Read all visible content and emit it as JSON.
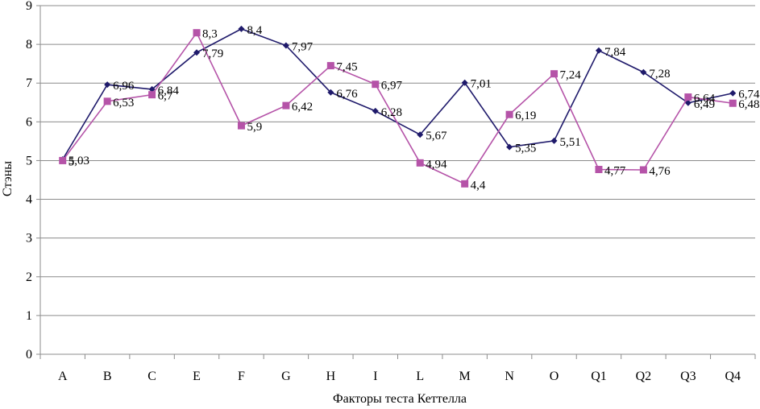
{
  "chart_data": {
    "type": "line",
    "xlabel": "Факторы теста Кеттелла",
    "ylabel": "Стэны",
    "ylim": [
      0,
      9
    ],
    "y_ticks": [
      "0",
      "1",
      "2",
      "3",
      "4",
      "5",
      "6",
      "7",
      "8",
      "9"
    ],
    "grid": "horizontal",
    "legend": "none",
    "categories": [
      "A",
      "B",
      "C",
      "E",
      "F",
      "G",
      "H",
      "I",
      "L",
      "M",
      "N",
      "O",
      "Q1",
      "Q2",
      "Q3",
      "Q4"
    ],
    "series": [
      {
        "color": "#1f1a6b",
        "marker": "diamond",
        "values": [
          5.03,
          6.96,
          6.84,
          7.79,
          8.4,
          7.97,
          6.76,
          6.28,
          5.67,
          7.01,
          5.35,
          5.51,
          7.84,
          7.28,
          6.49,
          6.74
        ],
        "labels": [
          "5,03",
          "6,96",
          "6,84",
          "7,79",
          "8,4",
          "7,97",
          "6,76",
          "6,28",
          "5,67",
          "7,01",
          "5,35",
          "5,51",
          "7,84",
          "7,28",
          "6,49",
          "6,74"
        ]
      },
      {
        "color": "#b553a8",
        "marker": "square",
        "values": [
          5.0,
          6.53,
          6.7,
          8.3,
          5.9,
          6.42,
          7.45,
          6.97,
          4.94,
          4.4,
          6.19,
          7.24,
          4.77,
          4.76,
          6.64,
          6.48
        ],
        "labels": [
          "5",
          "6,53",
          "6,7",
          "8,3",
          "5,9",
          "6,42",
          "7,45",
          "6,97",
          "4,94",
          "4,4",
          "6,19",
          "7,24",
          "4,77",
          "4,76",
          "6,64",
          "6,48"
        ]
      }
    ]
  }
}
